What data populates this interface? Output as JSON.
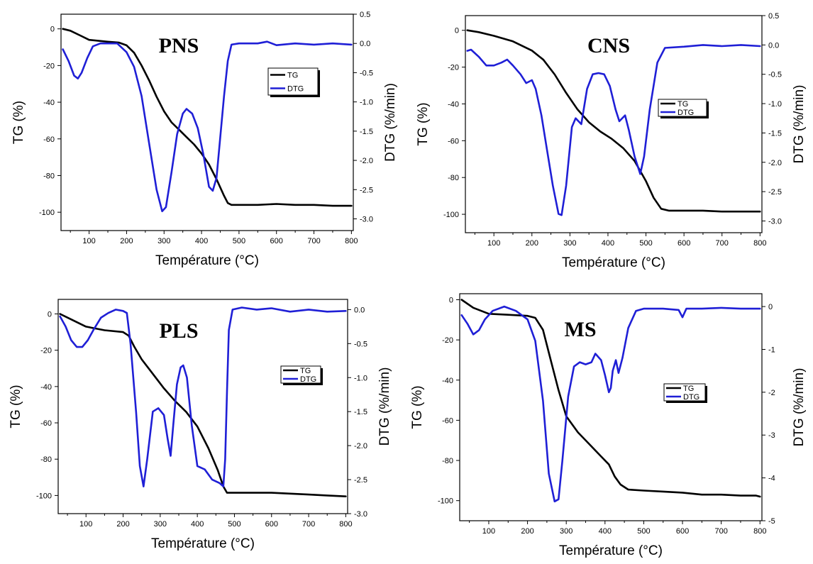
{
  "chart_data": [
    {
      "type": "line",
      "title": "PNS",
      "xlabel": "Température (°C)",
      "ylabel": "TG (%)",
      "y2label": "DTG (%/min)",
      "xlim": [
        25,
        805
      ],
      "ylim": [
        -110,
        8
      ],
      "y2lim": [
        -3.2,
        0.5
      ],
      "xticks": [
        100,
        200,
        300,
        400,
        500,
        600,
        700,
        800
      ],
      "yticks": [
        0,
        -20,
        -40,
        -60,
        -80,
        -100
      ],
      "y2ticks": [
        0.5,
        0.0,
        -0.5,
        -1.0,
        -1.5,
        -2.0,
        -2.5,
        -3.0
      ],
      "y2tick_labels": [
        "0.5",
        "0.0",
        "-0.5",
        "-1.0",
        "-1.5",
        "-2.0",
        "-2.5",
        "-3.0"
      ],
      "legend": {
        "position": "top-right",
        "entries": [
          "TG",
          "DTG"
        ]
      },
      "series": [
        {
          "name": "TG",
          "axis": "left",
          "color": "#000000",
          "x": [
            30,
            50,
            80,
            100,
            150,
            180,
            200,
            220,
            240,
            260,
            280,
            300,
            320,
            340,
            360,
            380,
            400,
            420,
            440,
            460,
            470,
            480,
            500,
            550,
            600,
            650,
            700,
            750,
            800
          ],
          "y": [
            0,
            -1,
            -4,
            -6,
            -7,
            -7.5,
            -9,
            -13,
            -20,
            -28,
            -37,
            -45,
            -51,
            -55,
            -59,
            -63,
            -68,
            -74,
            -82,
            -91,
            -95,
            -96,
            -96,
            -96,
            -95.5,
            -96,
            -96,
            -96.5,
            -96.5
          ]
        },
        {
          "name": "DTG",
          "axis": "right",
          "color": "#1f1fd6",
          "x": [
            30,
            45,
            60,
            70,
            80,
            95,
            110,
            130,
            150,
            175,
            200,
            220,
            240,
            260,
            280,
            295,
            305,
            320,
            335,
            350,
            360,
            375,
            390,
            405,
            420,
            430,
            440,
            450,
            460,
            470,
            480,
            500,
            550,
            575,
            600,
            650,
            700,
            750,
            800
          ],
          "y": [
            -0.1,
            -0.3,
            -0.55,
            -0.6,
            -0.5,
            -0.25,
            -0.05,
            0.0,
            0.0,
            0.0,
            -0.15,
            -0.4,
            -0.9,
            -1.7,
            -2.5,
            -2.87,
            -2.8,
            -2.2,
            -1.55,
            -1.2,
            -1.12,
            -1.2,
            -1.45,
            -1.9,
            -2.45,
            -2.52,
            -2.3,
            -1.6,
            -0.9,
            -0.3,
            -0.02,
            0.0,
            0.0,
            0.03,
            -0.03,
            0.0,
            -0.02,
            0.0,
            -0.02
          ]
        }
      ]
    },
    {
      "type": "line",
      "title": "CNS",
      "xlabel": "Température (°C)",
      "ylabel": "TG (%)",
      "y2label": "DTG (%/min)",
      "xlim": [
        25,
        805
      ],
      "ylim": [
        -110,
        8
      ],
      "y2lim": [
        -3.2,
        0.5
      ],
      "xticks": [
        100,
        200,
        300,
        400,
        500,
        600,
        700,
        800
      ],
      "yticks": [
        0,
        -20,
        -40,
        -60,
        -80,
        -100
      ],
      "y2ticks": [
        0.5,
        0.0,
        -0.5,
        -1.0,
        -1.5,
        -2.0,
        -2.5,
        -3.0
      ],
      "y2tick_labels": [
        "0.5",
        "0.0",
        "-0.5",
        "-1.0",
        "-1.5",
        "-2.0",
        "-2.5",
        "-3.0"
      ],
      "legend": {
        "position": "top-right",
        "entries": [
          "TG",
          "DTG"
        ]
      },
      "series": [
        {
          "name": "TG",
          "axis": "left",
          "color": "#000000",
          "x": [
            30,
            60,
            100,
            150,
            200,
            230,
            260,
            290,
            320,
            350,
            380,
            410,
            440,
            470,
            500,
            520,
            540,
            560,
            600,
            650,
            700,
            750,
            800
          ],
          "y": [
            0,
            -1,
            -3,
            -6,
            -11,
            -16,
            -24,
            -34,
            -43,
            -50,
            -55,
            -59,
            -64,
            -71,
            -82,
            -91,
            -97,
            -98,
            -98,
            -98,
            -98.5,
            -98.5,
            -98.5
          ]
        },
        {
          "name": "DTG",
          "axis": "right",
          "color": "#1f1fd6",
          "x": [
            30,
            40,
            60,
            80,
            100,
            120,
            135,
            150,
            170,
            185,
            200,
            210,
            225,
            240,
            255,
            270,
            278,
            290,
            305,
            315,
            330,
            345,
            360,
            375,
            390,
            405,
            420,
            430,
            445,
            455,
            470,
            485,
            495,
            510,
            530,
            550,
            600,
            650,
            700,
            750,
            800
          ],
          "y": [
            -0.1,
            -0.08,
            -0.2,
            -0.35,
            -0.35,
            -0.3,
            -0.25,
            -0.35,
            -0.5,
            -0.65,
            -0.6,
            -0.75,
            -1.2,
            -1.8,
            -2.4,
            -2.88,
            -2.9,
            -2.4,
            -1.4,
            -1.25,
            -1.35,
            -0.75,
            -0.5,
            -0.48,
            -0.5,
            -0.7,
            -1.1,
            -1.3,
            -1.2,
            -1.45,
            -1.9,
            -2.2,
            -1.9,
            -1.1,
            -0.3,
            -0.05,
            -0.03,
            0.0,
            -0.02,
            0.0,
            -0.02
          ]
        }
      ]
    },
    {
      "type": "line",
      "title": "PLS",
      "xlabel": "Température (°C)",
      "ylabel": "TG (%)",
      "y2label": "DTG (%/min)",
      "xlim": [
        25,
        805
      ],
      "ylim": [
        -110,
        8
      ],
      "y2lim": [
        -3.0,
        0.15
      ],
      "xticks": [
        100,
        200,
        300,
        400,
        500,
        600,
        700,
        800
      ],
      "yticks": [
        0,
        -20,
        -40,
        -60,
        -80,
        -100
      ],
      "y2ticks": [
        0.0,
        -0.5,
        -1.0,
        -1.5,
        -2.0,
        -2.5,
        -3.0
      ],
      "y2tick_labels": [
        "0.0",
        "-0.5",
        "-1.0",
        "-1.5",
        "-2.0",
        "-2.5",
        "-3.0"
      ],
      "legend": {
        "position": "top-right",
        "entries": [
          "TG",
          "DTG"
        ]
      },
      "series": [
        {
          "name": "TG",
          "axis": "left",
          "color": "#000000",
          "x": [
            30,
            60,
            100,
            150,
            200,
            215,
            230,
            250,
            280,
            310,
            340,
            370,
            400,
            430,
            455,
            470,
            480,
            500,
            550,
            600,
            650,
            700,
            750,
            800
          ],
          "y": [
            0,
            -3,
            -7,
            -9,
            -10,
            -12,
            -18,
            -25,
            -33,
            -41,
            -48,
            -54,
            -62,
            -74,
            -86,
            -95,
            -98.5,
            -98.5,
            -98.5,
            -98.5,
            -99,
            -99.5,
            -100,
            -100.5
          ]
        },
        {
          "name": "DTG",
          "axis": "right",
          "color": "#1f1fd6",
          "x": [
            30,
            45,
            60,
            75,
            90,
            105,
            120,
            140,
            160,
            180,
            200,
            210,
            220,
            235,
            245,
            255,
            265,
            280,
            295,
            310,
            320,
            328,
            335,
            345,
            355,
            362,
            372,
            385,
            400,
            420,
            440,
            460,
            470,
            475,
            480,
            485,
            495,
            520,
            560,
            600,
            650,
            700,
            750,
            800
          ],
          "y": [
            -0.1,
            -0.25,
            -0.45,
            -0.55,
            -0.55,
            -0.45,
            -0.3,
            -0.12,
            -0.05,
            0.0,
            -0.02,
            -0.05,
            -0.5,
            -1.5,
            -2.3,
            -2.6,
            -2.2,
            -1.5,
            -1.45,
            -1.55,
            -1.9,
            -2.15,
            -1.7,
            -1.1,
            -0.85,
            -0.82,
            -1.0,
            -1.7,
            -2.3,
            -2.35,
            -2.5,
            -2.55,
            -2.6,
            -2.2,
            -1.2,
            -0.3,
            0.0,
            0.03,
            0.0,
            0.02,
            -0.03,
            0.0,
            -0.03,
            -0.02
          ]
        }
      ]
    },
    {
      "type": "line",
      "title": "MS",
      "xlabel": "Température (°C)",
      "ylabel": "TG (%)",
      "y2label": "DTG (%/min)",
      "xlim": [
        25,
        805
      ],
      "ylim": [
        -110,
        3
      ],
      "y2lim": [
        -5,
        0.3
      ],
      "xticks": [
        100,
        200,
        300,
        400,
        500,
        600,
        700,
        800
      ],
      "yticks": [
        0,
        -20,
        -40,
        -60,
        -80,
        -100
      ],
      "y2ticks": [
        0,
        -1,
        -2,
        -3,
        -4,
        -5
      ],
      "y2tick_labels": [
        "0",
        "-1",
        "-2",
        "-3",
        "-4",
        "-5"
      ],
      "legend": {
        "position": "top-right",
        "entries": [
          "TG",
          "DTG"
        ]
      },
      "series": [
        {
          "name": "TG",
          "axis": "left",
          "color": "#000000",
          "x": [
            30,
            60,
            100,
            150,
            200,
            220,
            240,
            260,
            280,
            300,
            330,
            360,
            390,
            410,
            425,
            440,
            460,
            500,
            550,
            600,
            650,
            700,
            750,
            790,
            800
          ],
          "y": [
            0,
            -4,
            -7,
            -7.5,
            -8,
            -9,
            -15,
            -30,
            -45,
            -58,
            -66,
            -72,
            -78,
            -82,
            -88,
            -92,
            -94.5,
            -95,
            -95.5,
            -96,
            -97,
            -97,
            -97.5,
            -97.5,
            -98
          ]
        },
        {
          "name": "DTG",
          "axis": "right",
          "color": "#1f1fd6",
          "x": [
            30,
            45,
            60,
            75,
            90,
            110,
            140,
            170,
            200,
            220,
            240,
            255,
            270,
            280,
            290,
            305,
            320,
            335,
            350,
            365,
            375,
            390,
            400,
            410,
            415,
            420,
            428,
            435,
            445,
            460,
            480,
            500,
            550,
            590,
            600,
            610,
            650,
            700,
            750,
            800
          ],
          "y": [
            -0.2,
            -0.4,
            -0.65,
            -0.55,
            -0.3,
            -0.1,
            0.0,
            -0.1,
            -0.3,
            -0.8,
            -2.2,
            -3.9,
            -4.55,
            -4.5,
            -3.6,
            -2.1,
            -1.4,
            -1.3,
            -1.35,
            -1.3,
            -1.1,
            -1.25,
            -1.6,
            -2.0,
            -1.9,
            -1.5,
            -1.25,
            -1.55,
            -1.2,
            -0.5,
            -0.1,
            -0.05,
            -0.05,
            -0.08,
            -0.25,
            -0.05,
            -0.05,
            -0.03,
            -0.05,
            -0.05
          ]
        }
      ]
    }
  ]
}
